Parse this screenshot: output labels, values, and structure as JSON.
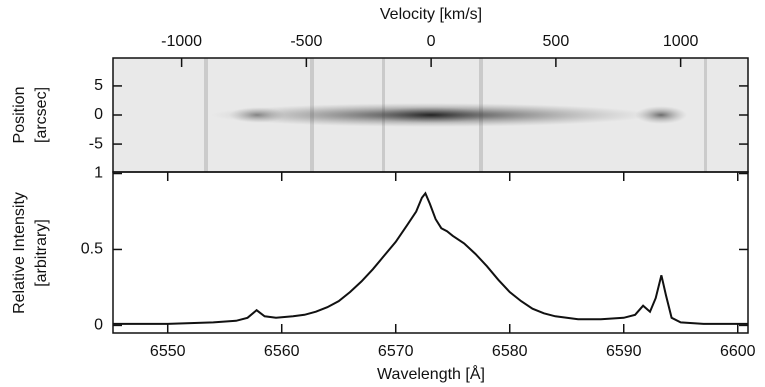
{
  "chart_data": [
    {
      "type": "image",
      "xlabel": "Velocity [km/s]",
      "ylabel": [
        "Position",
        "[arcsec]"
      ],
      "xlim": [
        -1275,
        1270
      ],
      "xticks": [
        -1000,
        -500,
        0,
        500,
        1000
      ],
      "ylim": [
        -9.8,
        9.8
      ],
      "yticks": [
        -5,
        0,
        5
      ]
    },
    {
      "type": "line",
      "xlabel": "Wavelength [Å]",
      "ylabel": [
        "Relative Intensity",
        "[arbitrary]"
      ],
      "xlim": [
        6545.2,
        6600.9
      ],
      "xticks": [
        6550,
        6560,
        6570,
        6580,
        6590,
        6600
      ],
      "ylim": [
        -0.05,
        1.01
      ],
      "yticks": [
        0,
        0.5,
        1
      ],
      "color": "#111111",
      "x": [
        6545.2,
        6548,
        6550,
        6552,
        6554,
        6556,
        6557,
        6557.8,
        6558.5,
        6559.5,
        6561,
        6562,
        6563,
        6564,
        6565,
        6566,
        6567,
        6568,
        6569,
        6570,
        6571,
        6571.8,
        6572.3,
        6572.6,
        6573,
        6573.5,
        6574,
        6574.5,
        6575,
        6576,
        6577,
        6578,
        6579,
        6580,
        6581,
        6582,
        6583,
        6584,
        6585,
        6586,
        6588,
        6590,
        6591,
        6591.7,
        6592.3,
        6592.8,
        6593.3,
        6593.7,
        6594.2,
        6595,
        6597,
        6599,
        6600.9
      ],
      "values": [
        0.01,
        0.01,
        0.01,
        0.015,
        0.02,
        0.03,
        0.05,
        0.1,
        0.06,
        0.05,
        0.06,
        0.07,
        0.09,
        0.12,
        0.16,
        0.22,
        0.29,
        0.37,
        0.46,
        0.55,
        0.66,
        0.75,
        0.84,
        0.87,
        0.8,
        0.7,
        0.64,
        0.62,
        0.59,
        0.54,
        0.47,
        0.39,
        0.3,
        0.22,
        0.16,
        0.11,
        0.08,
        0.06,
        0.05,
        0.04,
        0.04,
        0.05,
        0.07,
        0.13,
        0.09,
        0.18,
        0.33,
        0.2,
        0.05,
        0.02,
        0.01,
        0.01,
        0.01
      ]
    }
  ]
}
